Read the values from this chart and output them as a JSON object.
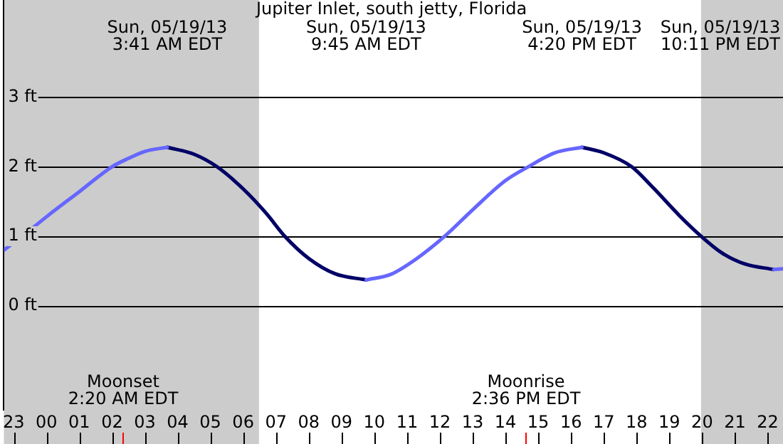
{
  "chart_data": {
    "type": "line",
    "title": "Jupiter Inlet, south jetty, Florida",
    "x": [
      "--05-18T22:42",
      "--05-18T23:16",
      "--05-19T00:00",
      "--05-19T01:00",
      "--05-19T02:00",
      "--05-19T02:30",
      "--05-19T03:00",
      "--05-19T03:41",
      "--05-19T04:30",
      "--05-19T05:12",
      "--05-19T06:00",
      "--05-19T06:42",
      "--05-19T07:16",
      "--05-19T08:00",
      "--05-19T08:48",
      "--05-19T09:45",
      "--05-19T10:30",
      "--05-19T11:18",
      "--05-19T12:09",
      "--05-19T13:00",
      "--05-19T14:00",
      "--05-19T14:42",
      "--05-19T15:30",
      "--05-19T16:20",
      "--05-19T17:00",
      "--05-19T17:51",
      "--05-19T18:30",
      "--05-19T19:18",
      "--05-19T19:58",
      "--05-19T20:36",
      "--05-19T21:18",
      "--05-19T22:11",
      "--05-19T22:28"
    ],
    "series": [
      {
        "color": "#6666ff",
        "values": [
          0.8,
          1.0,
          1.28,
          1.64,
          2.0,
          2.12,
          2.22,
          2.28,
          null,
          null,
          null,
          null,
          null,
          null,
          null,
          0.37,
          0.45,
          0.68,
          1.0,
          1.38,
          1.8,
          2.0,
          2.2,
          2.28,
          null,
          null,
          null,
          null,
          null,
          null,
          null,
          0.52,
          0.53
        ]
      },
      {
        "color": "#000066",
        "values": [
          null,
          null,
          null,
          null,
          null,
          null,
          null,
          2.28,
          2.18,
          2.0,
          1.68,
          1.33,
          1.0,
          0.68,
          0.46,
          0.37,
          null,
          null,
          null,
          null,
          null,
          null,
          null,
          2.28,
          2.2,
          2.0,
          1.7,
          1.3,
          1.0,
          0.76,
          0.6,
          0.52,
          null
        ]
      }
    ],
    "xlim": [
      "--05-18T22:42",
      "--05-19T22:28"
    ],
    "xticks": [
      {
        "value": "--05-18T23:00",
        "label": "23"
      },
      {
        "value": "--05-19T00:00",
        "label": "00"
      },
      {
        "value": "--05-19T01:00",
        "label": "01"
      },
      {
        "value": "--05-19T02:00",
        "label": "02"
      },
      {
        "value": "--05-19T03:00",
        "label": "03"
      },
      {
        "value": "--05-19T04:00",
        "label": "04"
      },
      {
        "value": "--05-19T05:00",
        "label": "05"
      },
      {
        "value": "--05-19T06:00",
        "label": "06"
      },
      {
        "value": "--05-19T07:00",
        "label": "07"
      },
      {
        "value": "--05-19T08:00",
        "label": "08"
      },
      {
        "value": "--05-19T09:00",
        "label": "09"
      },
      {
        "value": "--05-19T10:00",
        "label": "10"
      },
      {
        "value": "--05-19T11:00",
        "label": "11"
      },
      {
        "value": "--05-19T12:00",
        "label": "12"
      },
      {
        "value": "--05-19T13:00",
        "label": "13"
      },
      {
        "value": "--05-19T14:00",
        "label": "14"
      },
      {
        "value": "--05-19T15:00",
        "label": "15"
      },
      {
        "value": "--05-19T16:00",
        "label": "16"
      },
      {
        "value": "--05-19T17:00",
        "label": "17"
      },
      {
        "value": "--05-19T18:00",
        "label": "18"
      },
      {
        "value": "--05-19T19:00",
        "label": "19"
      },
      {
        "value": "--05-19T20:00",
        "label": "20"
      },
      {
        "value": "--05-19T21:00",
        "label": "21"
      },
      {
        "value": "--05-19T22:00",
        "label": "22"
      }
    ],
    "ylim": [
      -1.5,
      4.4
    ],
    "yticks": [
      {
        "value": 0,
        "label": "0 ft"
      },
      {
        "value": 1,
        "label": "1 ft"
      },
      {
        "value": 2,
        "label": "2 ft"
      },
      {
        "value": 3,
        "label": "3 ft"
      }
    ],
    "grid": "y",
    "legend": false,
    "marker": "none",
    "line_style": "solid",
    "bands": [
      {
        "axis": "x",
        "from": "--05-18T22:42",
        "to": "--05-19T06:29",
        "color": "#cccccc"
      },
      {
        "axis": "x",
        "from": "--05-19T19:58",
        "to": "--05-19T22:28",
        "color": "#cccccc"
      }
    ],
    "ref_lines": [
      {
        "axis": "x",
        "value": "--05-19T02:20",
        "label": "Moonset\n2:20 AM EDT",
        "color": "#ff0000"
      },
      {
        "axis": "x",
        "value": "--05-19T14:36",
        "label": "Moonrise\n2:36 PM EDT",
        "color": "#ff0000"
      }
    ],
    "annotations": [
      "Sun, 05/19/13\n3:41 AM EDT",
      "Sun, 05/19/13\n9:45 AM EDT",
      "Sun, 05/19/13\n4:20 PM EDT",
      "Sun, 05/19/13\n10:11 PM EDT"
    ]
  }
}
